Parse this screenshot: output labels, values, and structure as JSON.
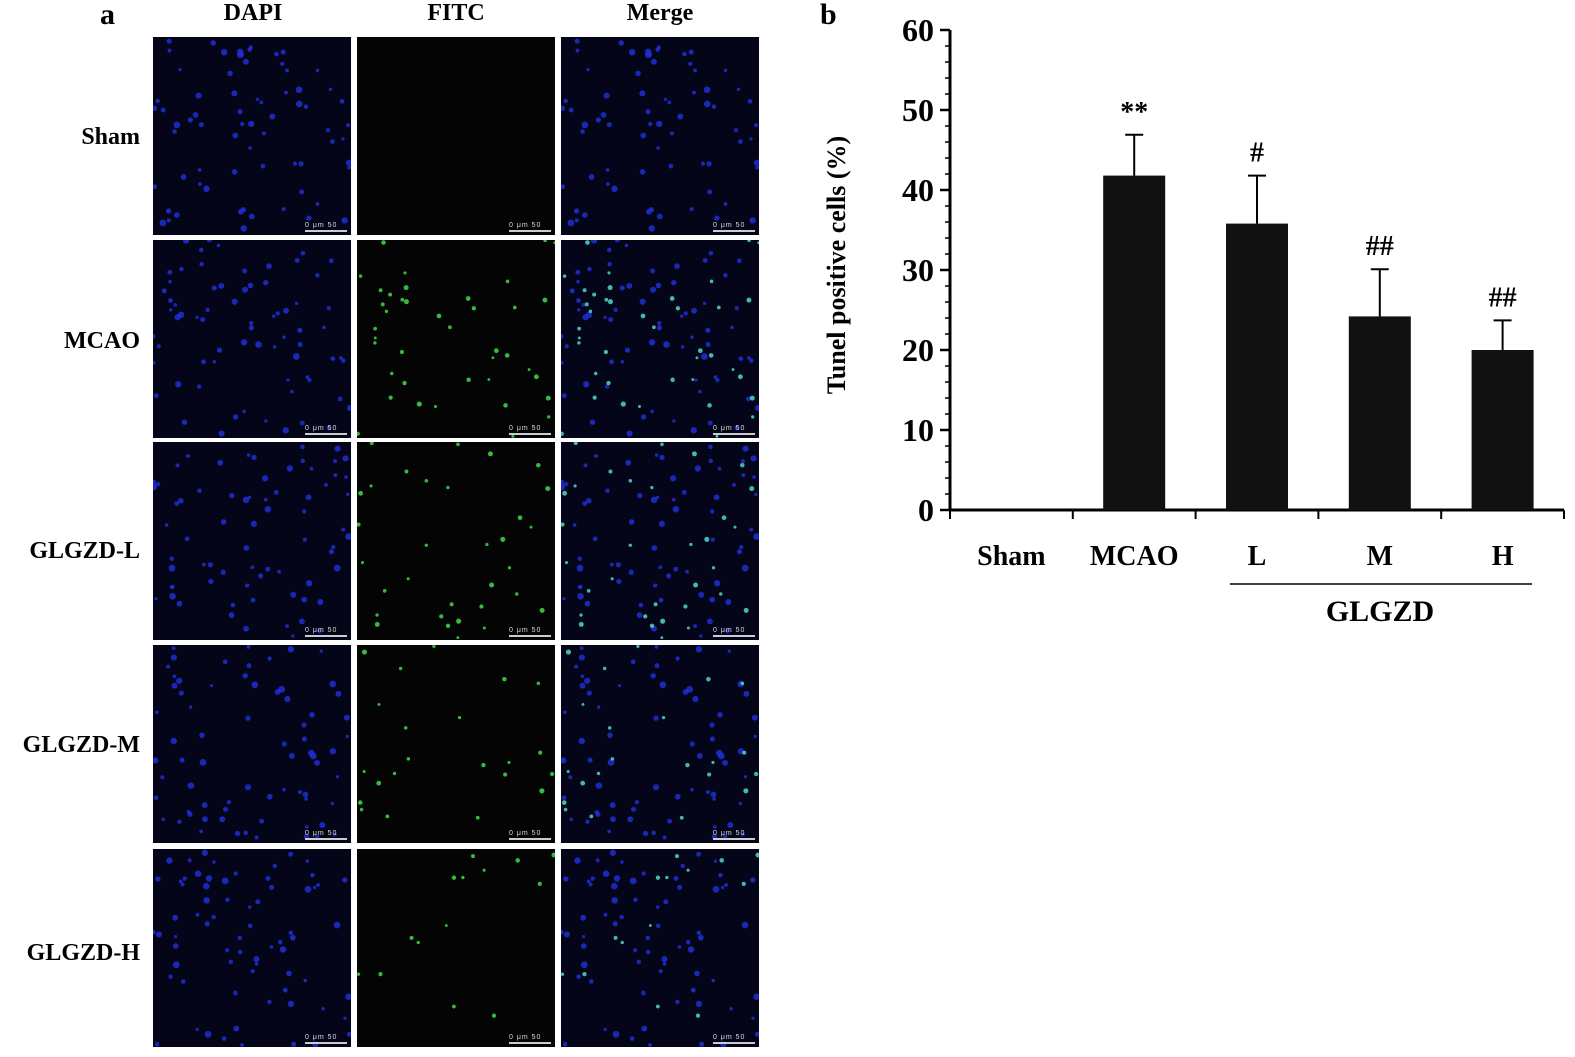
{
  "panel_a": {
    "letter": "a",
    "columns": [
      "DAPI",
      "FITC",
      "Merge"
    ],
    "rows": [
      "Sham",
      "MCAO",
      "GLGZD-L",
      "GLGZD-M",
      "GLGZD-H"
    ],
    "scale_bar": {
      "start": "0",
      "unit": "μm",
      "end": "50"
    },
    "fitc_density": [
      0,
      40,
      32,
      22,
      14
    ],
    "colors": {
      "dapi": "#1f2fd6",
      "fitc": "#3fd94a",
      "background": "#05051a"
    }
  },
  "panel_b": {
    "letter": "b",
    "group_label": "GLGZD"
  },
  "chart_data": {
    "type": "bar",
    "categories": [
      "Sham",
      "MCAO",
      "L",
      "M",
      "H"
    ],
    "values": [
      0,
      41.8,
      35.8,
      24.2,
      20.0
    ],
    "errors": [
      0,
      5.1,
      6.0,
      5.9,
      3.7
    ],
    "annotations": [
      "",
      "**",
      "#",
      "##",
      "##"
    ],
    "title": "",
    "xlabel": "",
    "ylabel": "Tunel positive cells (%)",
    "ylim": [
      0,
      60
    ],
    "yticks": [
      0,
      10,
      20,
      30,
      40,
      50,
      60
    ],
    "grid": false,
    "bar_color": "#111111"
  }
}
